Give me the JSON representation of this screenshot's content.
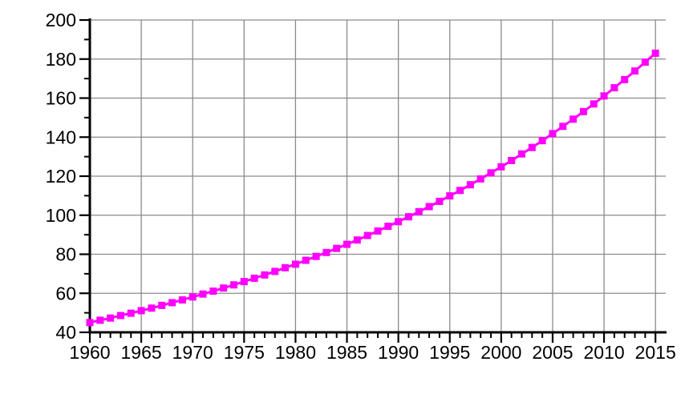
{
  "chart_data": {
    "type": "line",
    "title": "",
    "xlabel": "",
    "ylabel": "",
    "grid": "on",
    "legend": "none",
    "xlim": [
      1960,
      2016
    ],
    "ylim": [
      40,
      200
    ],
    "x_major_ticks": [
      1960,
      1965,
      1970,
      1975,
      1980,
      1985,
      1990,
      1995,
      2000,
      2005,
      2010,
      2015
    ],
    "x_minor_tick_step": 1,
    "y_major_ticks": [
      40,
      60,
      80,
      100,
      120,
      140,
      160,
      180,
      200
    ],
    "y_minor_tick_step": 10,
    "colors": {
      "series": "#FF00FF",
      "grid": "#8A8A8A",
      "axis": "#000000",
      "tick_labels": "#000000",
      "background": "#FFFFFF"
    },
    "series": [
      {
        "name": "series-1",
        "marker": "square",
        "x": [
          1960,
          1961,
          1962,
          1963,
          1964,
          1965,
          1966,
          1967,
          1968,
          1969,
          1970,
          1971,
          1972,
          1973,
          1974,
          1975,
          1976,
          1977,
          1978,
          1979,
          1980,
          1981,
          1982,
          1983,
          1984,
          1985,
          1986,
          1987,
          1988,
          1989,
          1990,
          1991,
          1992,
          1993,
          1994,
          1995,
          1996,
          1997,
          1998,
          1999,
          2000,
          2001,
          2002,
          2003,
          2004,
          2005,
          2006,
          2007,
          2008,
          2009,
          2010,
          2011,
          2012,
          2013,
          2014,
          2015
        ],
        "values": [
          45.0,
          46.2,
          47.3,
          48.6,
          49.8,
          51.1,
          52.4,
          53.8,
          55.2,
          56.6,
          58.1,
          59.6,
          61.1,
          62.7,
          64.3,
          66.0,
          67.7,
          69.4,
          71.2,
          73.1,
          74.9,
          76.9,
          78.9,
          80.9,
          83.0,
          85.1,
          87.3,
          89.6,
          91.9,
          94.3,
          96.7,
          99.2,
          101.8,
          104.4,
          107.1,
          109.9,
          112.7,
          115.6,
          118.6,
          121.7,
          124.8,
          128.0,
          131.4,
          134.7,
          138.2,
          141.8,
          145.5,
          149.2,
          153.1,
          157.0,
          161.1,
          165.3,
          169.5,
          173.9,
          178.4,
          183.0
        ]
      }
    ]
  }
}
